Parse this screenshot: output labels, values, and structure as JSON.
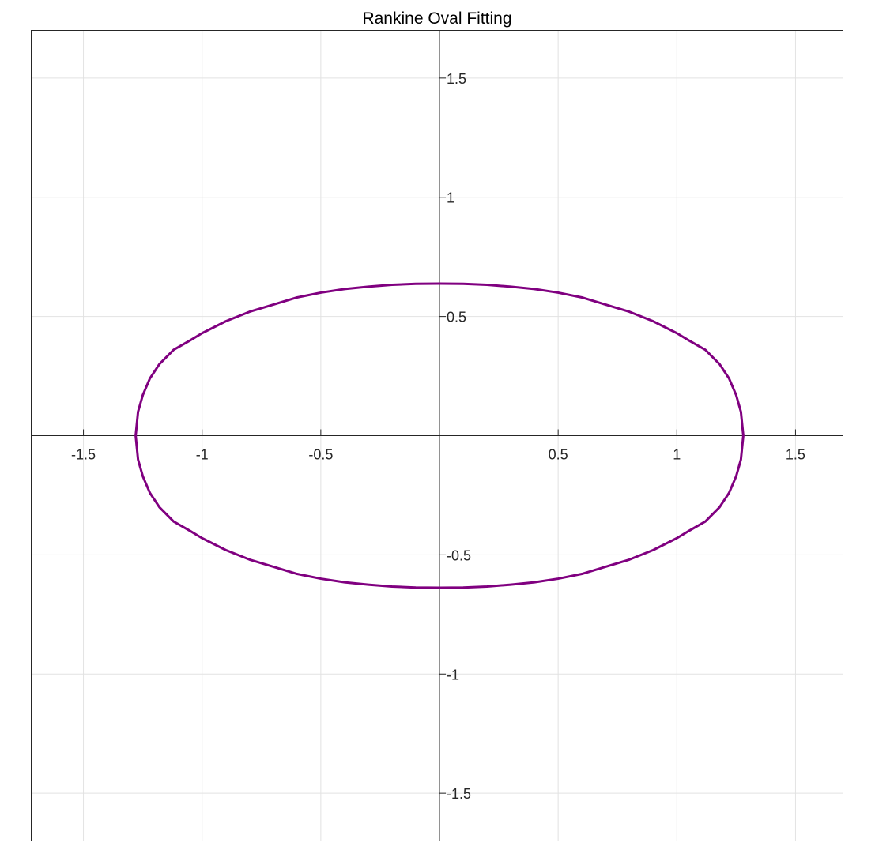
{
  "chart_data": {
    "type": "line",
    "title": "Rankine Oval Fitting",
    "xlabel": "",
    "ylabel": "",
    "xlim": [
      -1.72,
      1.7
    ],
    "ylim": [
      -1.7,
      1.7
    ],
    "xticks": [
      -1.5,
      -1,
      -0.5,
      0.5,
      1,
      1.5
    ],
    "xtick_labels": [
      "-1.5",
      "-1",
      "-0.5",
      "0.5",
      "1",
      "1.5"
    ],
    "yticks": [
      1.5,
      1,
      0.5,
      -0.5,
      -1,
      -1.5
    ],
    "ytick_labels": [
      "1.5",
      "1",
      "0.5",
      "-0.5",
      "-1",
      "-1.5"
    ],
    "grid": true,
    "axes_through_origin": true,
    "series": [
      {
        "color": "#800080",
        "x": [
          1.28,
          1.27,
          1.25,
          1.22,
          1.18,
          1.12,
          1.05,
          1.0,
          0.9,
          0.8,
          0.7,
          0.6,
          0.5,
          0.4,
          0.3,
          0.2,
          0.1,
          0.0,
          -0.1,
          -0.2,
          -0.3,
          -0.4,
          -0.5,
          -0.6,
          -0.7,
          -0.8,
          -0.9,
          -1.0,
          -1.05,
          -1.12,
          -1.18,
          -1.22,
          -1.25,
          -1.27,
          -1.28,
          -1.27,
          -1.25,
          -1.22,
          -1.18,
          -1.12,
          -1.05,
          -1.0,
          -0.9,
          -0.8,
          -0.7,
          -0.6,
          -0.5,
          -0.4,
          -0.3,
          -0.2,
          -0.1,
          0.0,
          0.1,
          0.2,
          0.3,
          0.4,
          0.5,
          0.6,
          0.7,
          0.8,
          0.9,
          1.0,
          1.05,
          1.12,
          1.18,
          1.22,
          1.25,
          1.27,
          1.28
        ],
        "y": [
          0.0,
          0.1,
          0.17,
          0.24,
          0.3,
          0.36,
          0.4,
          0.43,
          0.48,
          0.52,
          0.55,
          0.58,
          0.6,
          0.615,
          0.625,
          0.633,
          0.637,
          0.638,
          0.637,
          0.633,
          0.625,
          0.615,
          0.6,
          0.58,
          0.55,
          0.52,
          0.48,
          0.43,
          0.4,
          0.36,
          0.3,
          0.24,
          0.17,
          0.1,
          0.0,
          -0.1,
          -0.17,
          -0.24,
          -0.3,
          -0.36,
          -0.4,
          -0.43,
          -0.48,
          -0.52,
          -0.55,
          -0.58,
          -0.6,
          -0.615,
          -0.625,
          -0.633,
          -0.637,
          -0.638,
          -0.637,
          -0.633,
          -0.625,
          -0.615,
          -0.6,
          -0.58,
          -0.55,
          -0.52,
          -0.48,
          -0.43,
          -0.4,
          -0.36,
          -0.3,
          -0.24,
          -0.17,
          -0.1,
          0.0
        ]
      }
    ]
  }
}
